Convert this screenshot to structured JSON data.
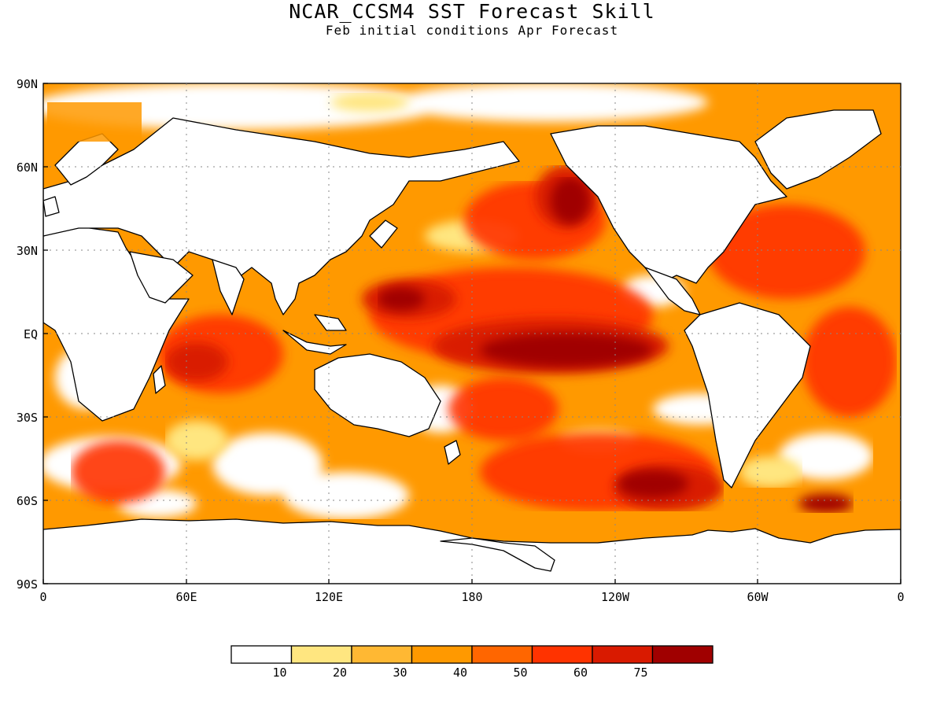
{
  "title": "NCAR_CCSM4 SST Forecast Skill",
  "subtitle": "Feb initial conditions  Apr Forecast",
  "map": {
    "lat_ticks": [
      "90N",
      "60N",
      "30N",
      "EQ",
      "30S",
      "60S",
      "90S"
    ],
    "lon_ticks": [
      "0",
      "60E",
      "120E",
      "180",
      "120W",
      "60W",
      "0"
    ]
  },
  "legend": {
    "bins": [
      {
        "color": "#ffffff"
      },
      {
        "color": "#ffe680"
      },
      {
        "color": "#ffb833"
      },
      {
        "color": "#ff9900"
      },
      {
        "color": "#ff6600"
      },
      {
        "color": "#ff3300"
      },
      {
        "color": "#d91a00"
      },
      {
        "color": "#a00000"
      }
    ],
    "labels": [
      "10",
      "20",
      "30",
      "40",
      "50",
      "60",
      "75"
    ]
  }
}
